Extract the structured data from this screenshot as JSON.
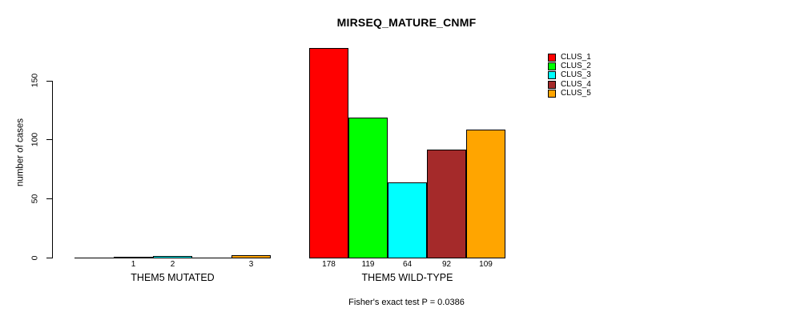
{
  "chart_data": {
    "type": "bar",
    "title": "MIRSEQ_MATURE_CNMF",
    "ylabel": "number of cases",
    "xlabel": "",
    "yticks": [
      0,
      50,
      100,
      150
    ],
    "ylim": [
      0,
      178
    ],
    "grid": false,
    "legend_position": "top-right",
    "legend": [
      {
        "label": "CLUS_1",
        "color": "#FF0000"
      },
      {
        "label": "CLUS_2",
        "color": "#00FF00"
      },
      {
        "label": "CLUS_3",
        "color": "#00FFFF"
      },
      {
        "label": "CLUS_4",
        "color": "#A52A2A"
      },
      {
        "label": "CLUS_5",
        "color": "#FFA500"
      }
    ],
    "groups": [
      {
        "label": "THEM5 MUTATED",
        "values": [
          0,
          1,
          2,
          0,
          3
        ],
        "bar_labels": [
          "",
          "1",
          "2",
          "",
          "3"
        ]
      },
      {
        "label": "THEM5 WILD-TYPE",
        "values": [
          178,
          119,
          64,
          92,
          109
        ],
        "bar_labels": [
          "178",
          "119",
          "64",
          "92",
          "109"
        ]
      }
    ],
    "annotation": "Fisher's exact test P = 0.0386"
  },
  "style": {
    "background": "#FFFFFF",
    "axis_color": "#000000",
    "bar_border": "#000000",
    "text_color": "#000000"
  }
}
